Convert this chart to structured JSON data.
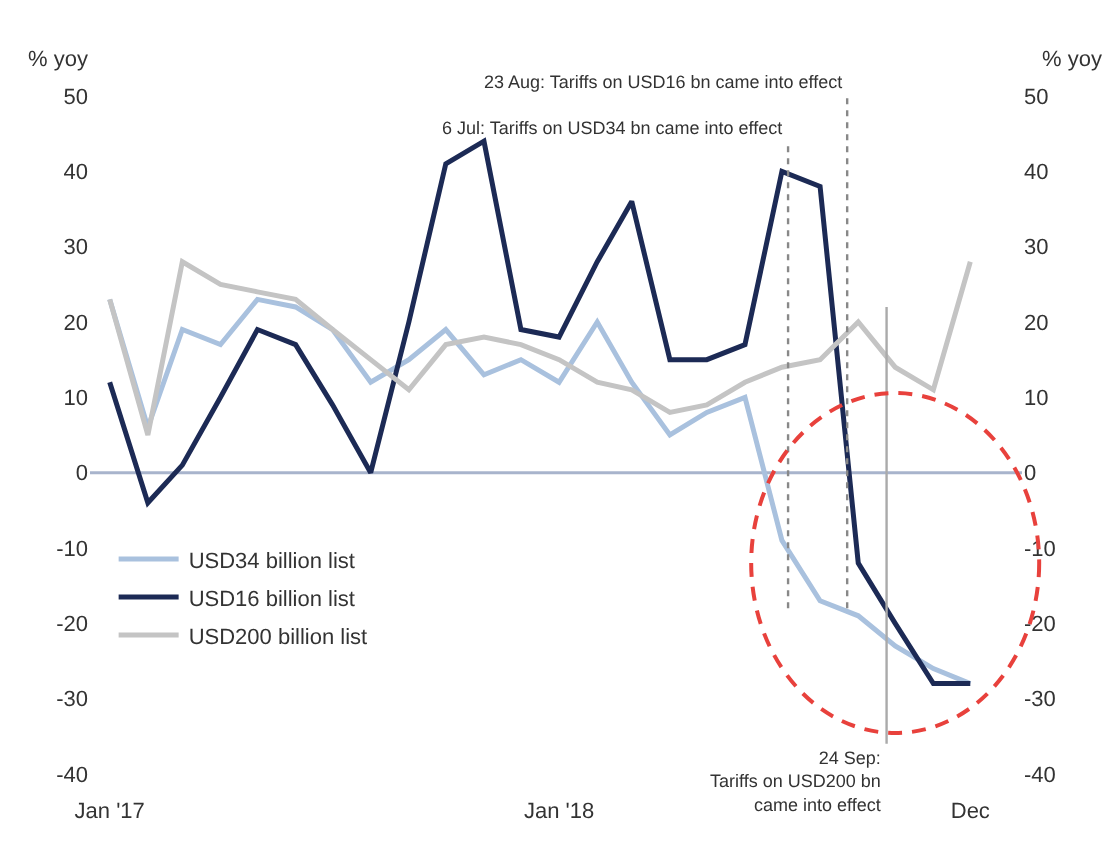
{
  "chart_data": {
    "type": "line",
    "ylabel": "% yoy",
    "y2label": "% yoy",
    "x": [
      "2017-01",
      "2017-02",
      "2017-03",
      "2017-04",
      "2017-05",
      "2017-06",
      "2017-07",
      "2017-08",
      "2017-09",
      "2017-10",
      "2017-11",
      "2017-12",
      "2018-01",
      "2018-02",
      "2018-03",
      "2018-04",
      "2018-05",
      "2018-06",
      "2018-07",
      "2018-08",
      "2018-09",
      "2018-10",
      "2018-11",
      "2018-12"
    ],
    "series": [
      {
        "name": "USD34 billion list",
        "color": "#a9c1de",
        "values": [
          23,
          6,
          19,
          17,
          23,
          22,
          19,
          12,
          15,
          19,
          13,
          15,
          12,
          20,
          12,
          5,
          8,
          10,
          -9,
          -17,
          -19,
          -23,
          -26,
          -28
        ]
      },
      {
        "name": "USD16 billion list",
        "color": "#1c2a55",
        "values": [
          12,
          -4,
          1,
          10,
          19,
          17,
          9,
          0,
          20,
          41,
          44,
          19,
          18,
          28,
          36,
          15,
          15,
          17,
          40,
          38,
          -12,
          -20,
          -28,
          -28
        ]
      },
      {
        "name": "USD200 billion list",
        "color": "#c4c4c4",
        "values": [
          23,
          5,
          28,
          25,
          24,
          23,
          19,
          15,
          11,
          17,
          18,
          17,
          15,
          12,
          11,
          8,
          9,
          12,
          14,
          15,
          20,
          14,
          11,
          28
        ]
      }
    ],
    "xlim": [
      "2016-12-16",
      "2019-01-12"
    ],
    "xticks": [
      {
        "value": "2017-01",
        "label": "Jan '17"
      },
      {
        "value": "2018-01",
        "label": "Jan '18"
      },
      {
        "value": "2018-12",
        "label": "Dec"
      }
    ],
    "ylim": [
      -40,
      50
    ],
    "yticks": [
      -40,
      -30,
      -20,
      -10,
      0,
      10,
      20,
      30,
      40,
      50
    ],
    "y2lim": [
      -40,
      50
    ],
    "y2ticks": [
      -40,
      -30,
      -20,
      -10,
      0,
      10,
      20,
      30,
      40,
      50
    ],
    "ref_lines": [
      {
        "axis": "y",
        "value": 0,
        "color": "#a8b4cc",
        "line_style": "solid"
      },
      {
        "axis": "x",
        "value": "2018-07-06",
        "label": "6 Jul: Tariffs on USD34 bn came into effect",
        "line_style": "dotted",
        "color": "#888888"
      },
      {
        "axis": "x",
        "value": "2018-08-23",
        "label": "23 Aug: Tariffs on USD16 bn came into effect",
        "line_style": "dotted",
        "color": "#888888"
      },
      {
        "axis": "x",
        "value": "2018-09-24",
        "label": "24 Sep: Tariffs on USD200 bn came into effect",
        "line_style": "solid",
        "color": "#aaaaaa"
      }
    ],
    "grid": false,
    "legend": "bottom left",
    "marker": "none",
    "line_style": "solid"
  }
}
